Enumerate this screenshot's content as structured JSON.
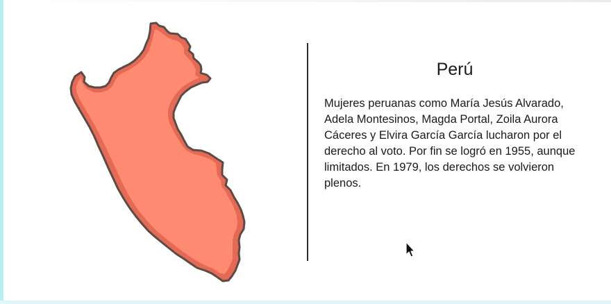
{
  "slide": {
    "title": "Perú",
    "body": "Mujeres peruanas como María Jesús Alvarado, Adela Montesinos, Magda Portal, Zoila Aurora Cáceres y Elvira García García lucharon por el derecho al voto. Por fin se logró en 1955, aunque limitados. En 1979, los derechos se volvieron plenos."
  },
  "map": {
    "icon": "peru-map",
    "fill_color": "#fe8a72",
    "outline_color": "#e46a56",
    "border_color": "#5c4a45"
  },
  "colors": {
    "text": "#1a1a1a",
    "divider": "#2b2b2b",
    "background": "#ffffff"
  },
  "cursor": {
    "icon": "mouse-pointer-icon"
  }
}
